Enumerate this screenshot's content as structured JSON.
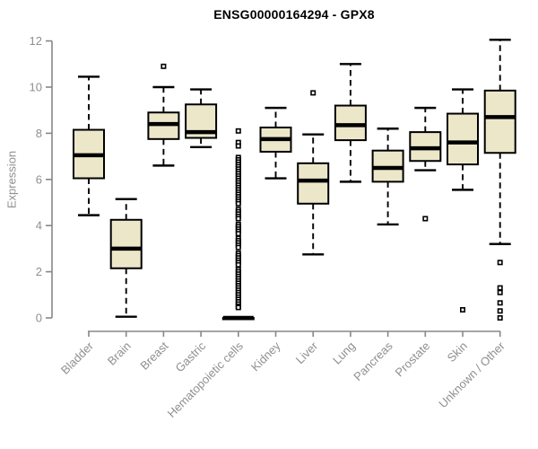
{
  "chart_data": {
    "type": "boxplot",
    "title": "ENSG00000164294 - GPX8",
    "ylabel": "Expression",
    "ylim": [
      0,
      12
    ],
    "yticks": [
      0,
      2,
      4,
      6,
      8,
      10,
      12
    ],
    "grid": false,
    "legend": "none",
    "box_fill": "#EDE7CA",
    "box_stroke": "#000000",
    "median_color": "#000000",
    "whisker_color": "#000000",
    "outlier_fill": "#ffffff",
    "axis_color": "#878787",
    "label_color": "#8f8f8f",
    "title_color": "#000000",
    "categories": [
      "Bladder",
      "Brain",
      "Breast",
      "Gastric",
      "Hematopoietic cells",
      "Kidney",
      "Liver",
      "Lung",
      "Pancreas",
      "Prostate",
      "Skin",
      "Unknown / Other"
    ],
    "series": [
      {
        "category": "Bladder",
        "low": 4.45,
        "q1": 6.05,
        "median": 7.05,
        "q3": 8.15,
        "high": 10.45,
        "outliers": []
      },
      {
        "category": "Brain",
        "low": 0.05,
        "q1": 2.15,
        "median": 3.0,
        "q3": 4.25,
        "high": 5.15,
        "outliers": []
      },
      {
        "category": "Breast",
        "low": 6.6,
        "q1": 7.75,
        "median": 8.4,
        "q3": 8.9,
        "high": 10.0,
        "outliers": [
          10.9
        ]
      },
      {
        "category": "Gastric",
        "low": 7.4,
        "q1": 7.8,
        "median": 8.05,
        "q3": 9.25,
        "high": 9.9,
        "outliers": []
      },
      {
        "category": "Hematopoietic cells",
        "low": 0,
        "q1": 0,
        "median": 0,
        "q3": 0,
        "high": 0,
        "outliers": [
          8.1,
          7.6,
          7.45,
          6.95,
          6.85,
          6.75,
          6.65,
          6.55,
          6.45,
          6.35,
          6.25,
          6.15,
          6.05,
          5.95,
          5.85,
          5.75,
          5.65,
          5.55,
          5.45,
          5.35,
          5.25,
          5.15,
          5.05,
          4.95,
          4.7,
          4.6,
          4.5,
          4.4,
          4.3,
          4.05,
          3.95,
          3.85,
          3.75,
          3.65,
          3.45,
          3.35,
          3.25,
          3.15,
          3.05,
          2.8,
          2.7,
          2.6,
          2.5,
          2.4,
          2.3,
          2.1,
          2.0,
          1.9,
          1.8,
          1.7,
          1.6,
          1.5,
          1.4,
          1.3,
          1.2,
          1.1,
          1.0,
          0.9,
          0.8,
          0.7,
          0.6,
          0.5,
          0.45
        ]
      },
      {
        "category": "Kidney",
        "low": 6.05,
        "q1": 7.2,
        "median": 7.75,
        "q3": 8.25,
        "high": 9.1,
        "outliers": []
      },
      {
        "category": "Liver",
        "low": 2.75,
        "q1": 4.95,
        "median": 5.95,
        "q3": 6.7,
        "high": 7.95,
        "outliers": [
          9.75
        ]
      },
      {
        "category": "Lung",
        "low": 5.9,
        "q1": 7.7,
        "median": 8.35,
        "q3": 9.2,
        "high": 11.0,
        "outliers": []
      },
      {
        "category": "Pancreas",
        "low": 4.05,
        "q1": 5.9,
        "median": 6.5,
        "q3": 7.25,
        "high": 8.2,
        "outliers": []
      },
      {
        "category": "Prostate",
        "low": 6.4,
        "q1": 6.8,
        "median": 7.35,
        "q3": 8.05,
        "high": 9.1,
        "outliers": [
          4.3
        ]
      },
      {
        "category": "Skin",
        "low": 5.55,
        "q1": 6.65,
        "median": 7.6,
        "q3": 8.85,
        "high": 9.9,
        "outliers": [
          0.35
        ]
      },
      {
        "category": "Unknown / Other",
        "low": 3.2,
        "q1": 7.15,
        "median": 8.7,
        "q3": 9.85,
        "high": 12.05,
        "outliers": [
          2.4,
          1.3,
          1.1,
          0.65,
          0.3,
          0.0
        ]
      }
    ]
  }
}
